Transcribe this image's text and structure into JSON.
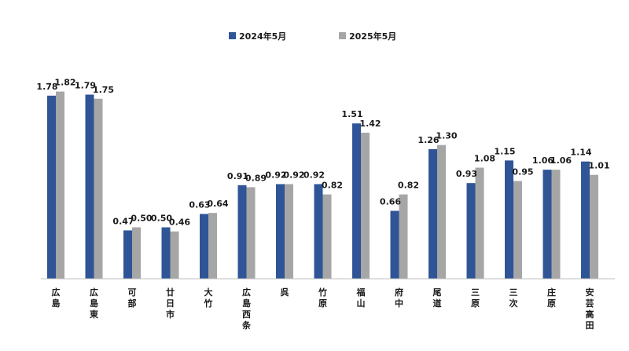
{
  "chart_data": {
    "type": "bar",
    "categories": [
      "広島",
      "広島東",
      "可部",
      "廿日市",
      "大竹",
      "広島西条",
      "呉",
      "竹原",
      "福山",
      "府中",
      "尾道",
      "三原",
      "三次",
      "庄原",
      "安芸高田"
    ],
    "series": [
      {
        "name": "2024年5月",
        "values": [
          1.78,
          1.79,
          0.47,
          0.5,
          0.63,
          0.91,
          0.92,
          0.92,
          1.51,
          0.66,
          1.26,
          0.93,
          1.15,
          1.06,
          1.14
        ],
        "labels": [
          "1.78",
          "1.79",
          "0.47",
          "0.50",
          "0.63",
          "0.91",
          "0.92",
          "0.92",
          "1.51",
          "0.66",
          "1.26",
          "0.93",
          "1.15",
          "1.06",
          "1.14"
        ],
        "color": "#2f5597"
      },
      {
        "name": "2025年5月",
        "values": [
          1.82,
          1.75,
          0.5,
          0.46,
          0.64,
          0.89,
          0.92,
          0.82,
          1.42,
          0.82,
          1.3,
          1.08,
          0.95,
          1.06,
          1.01
        ],
        "labels": [
          "1.82",
          "1.75",
          "0.50",
          "0.46",
          "0.64",
          "0.89",
          "0.92",
          "0.82",
          "1.42",
          "0.82",
          "1.30",
          "1.08",
          "0.95",
          "1.06",
          "1.01"
        ],
        "color": "#a6a6a6"
      }
    ],
    "title": "",
    "xlabel": "",
    "ylabel": "",
    "ylim": [
      0,
      2.0
    ],
    "grid": false,
    "legend_position": "top"
  }
}
